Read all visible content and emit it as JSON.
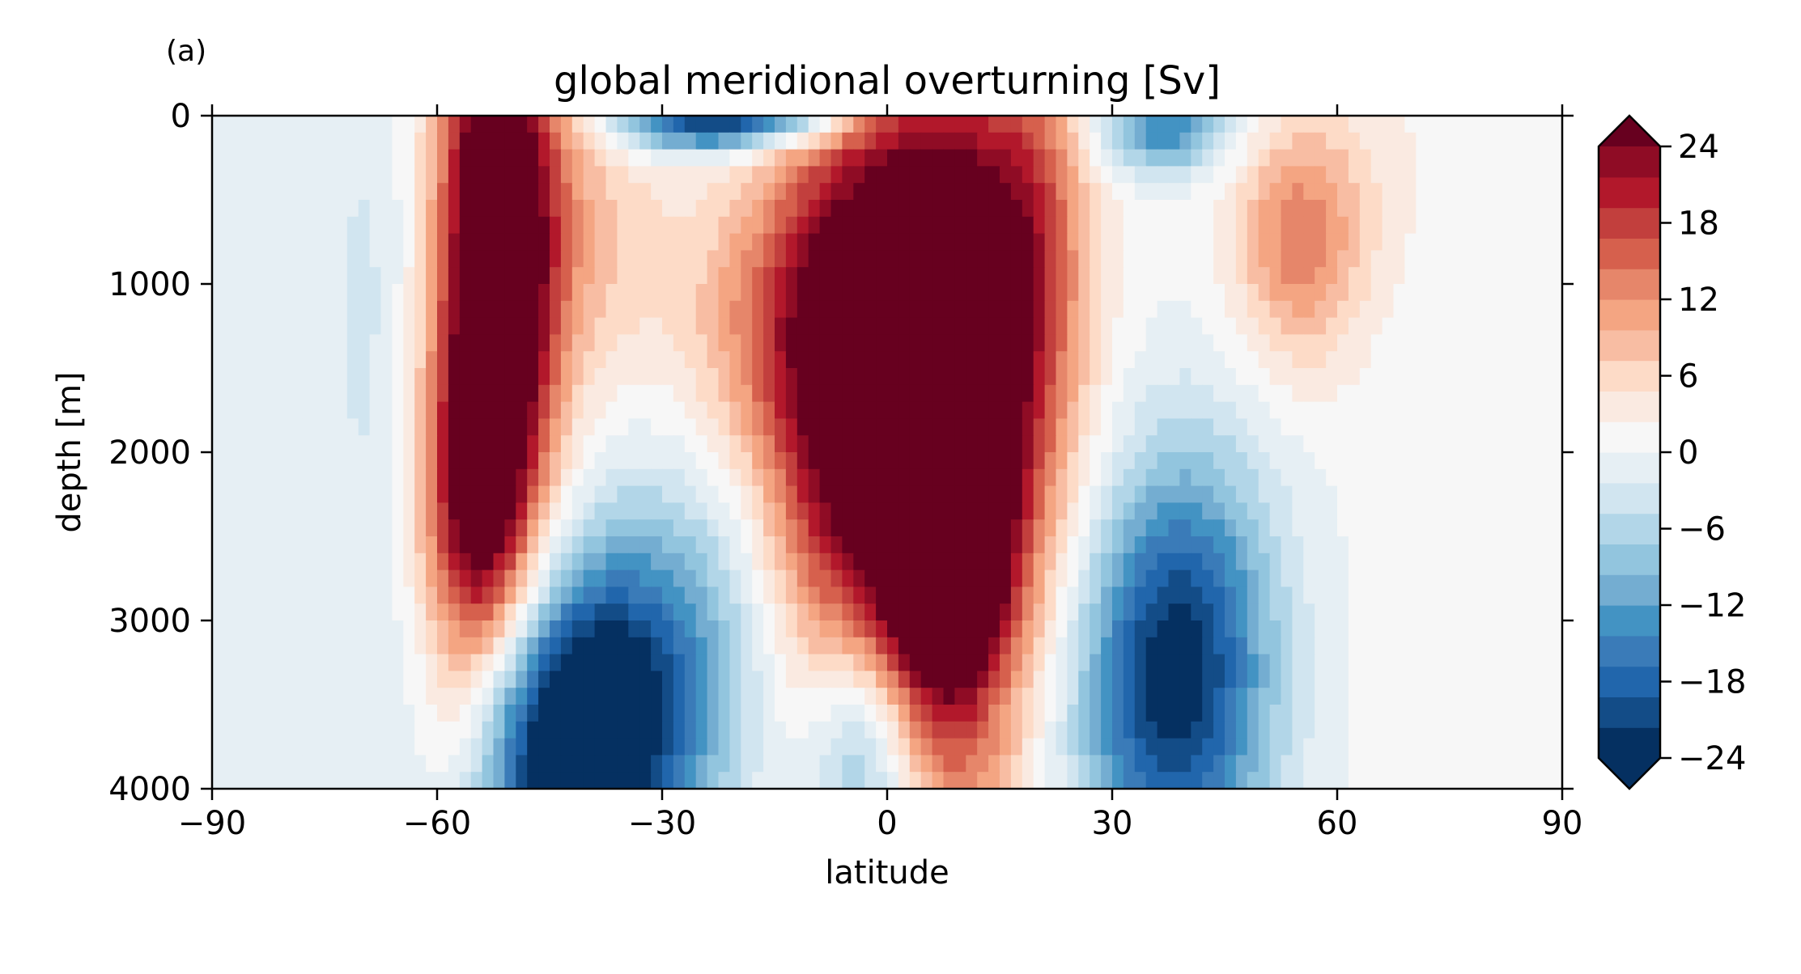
{
  "panel_label": "(a)",
  "colors": {
    "palette": [
      "#053061",
      "#134c87",
      "#2166ac",
      "#3a7bb8",
      "#4393c3",
      "#74add1",
      "#92c5de",
      "#b2d6e8",
      "#d1e5f0",
      "#e6eff4",
      "#f7f7f7",
      "#faeae1",
      "#fddbc7",
      "#f8bda3",
      "#f4a582",
      "#e6866a",
      "#d6604d",
      "#c23f3d",
      "#b2182b",
      "#8f0c25",
      "#67001f"
    ],
    "axis": "#000000",
    "background": "#ffffff"
  },
  "chart_data": {
    "type": "heatmap",
    "title": "global meridional overturning [Sv]",
    "xlabel": "latitude",
    "ylabel": "depth [m]",
    "xlim": [
      -90,
      90
    ],
    "ylim": [
      4000,
      0
    ],
    "y_inverted": true,
    "xticks": [
      -90,
      -60,
      -30,
      0,
      30,
      60,
      90
    ],
    "xtick_labels": [
      "−90",
      "−60",
      "−30",
      "0",
      "30",
      "60",
      "90"
    ],
    "yticks": [
      0,
      1000,
      2000,
      3000,
      4000
    ],
    "ytick_labels": [
      "0",
      "1000",
      "2000",
      "3000",
      "4000"
    ],
    "colorbar": {
      "min": -24,
      "max": 24,
      "extend": "both",
      "ticks": [
        -24,
        -18,
        -12,
        -6,
        0,
        6,
        12,
        18,
        24
      ],
      "tick_labels": [
        "−24",
        "−18",
        "−12",
        "−6",
        "0",
        "6",
        "12",
        "18",
        "24"
      ],
      "levels": [
        -24,
        -21.6,
        -19.2,
        -16.8,
        -14.4,
        -12,
        -9.6,
        -7.2,
        -4.8,
        -2.4,
        0,
        2.4,
        4.8,
        7.2,
        9.6,
        12,
        14.4,
        16.8,
        19.2,
        21.6,
        24
      ]
    },
    "features": [
      {
        "x": -52,
        "y": 900,
        "sx": 5.5,
        "sy": 1500,
        "v": 36
      },
      {
        "x": -56,
        "y": 2400,
        "sx": 4.5,
        "sy": 700,
        "v": 14
      },
      {
        "x": -40,
        "y": 700,
        "sx": 8,
        "sy": 700,
        "v": 7
      },
      {
        "x": -42,
        "y": 3750,
        "sx": 10,
        "sy": 650,
        "v": -30
      },
      {
        "x": -30,
        "y": 3100,
        "sx": 10,
        "sy": 700,
        "v": -10
      },
      {
        "x": -25,
        "y": 30,
        "sx": 8,
        "sy": 130,
        "v": -22
      },
      {
        "x": -12,
        "y": 40,
        "sx": 6,
        "sy": 90,
        "v": -12
      },
      {
        "x": 7,
        "y": 1500,
        "sx": 10,
        "sy": 1200,
        "v": 42
      },
      {
        "x": 8,
        "y": 2800,
        "sx": 6,
        "sy": 650,
        "v": 22
      },
      {
        "x": -8,
        "y": 1600,
        "sx": 7,
        "sy": 1200,
        "v": 16
      },
      {
        "x": -18,
        "y": 1200,
        "sx": 8,
        "sy": 600,
        "v": 8
      },
      {
        "x": 20,
        "y": 500,
        "sx": 5,
        "sy": 800,
        "v": 8
      },
      {
        "x": -3,
        "y": 3750,
        "sx": 5,
        "sy": 500,
        "v": -12
      },
      {
        "x": 38,
        "y": 3500,
        "sx": 9,
        "sy": 800,
        "v": -20
      },
      {
        "x": 40,
        "y": 2700,
        "sx": 8,
        "sy": 700,
        "v": -7
      },
      {
        "x": 37,
        "y": 80,
        "sx": 6,
        "sy": 180,
        "v": -15
      },
      {
        "x": 55,
        "y": 800,
        "sx": 6,
        "sy": 500,
        "v": 12
      },
      {
        "x": 60,
        "y": 300,
        "sx": 12,
        "sy": 500,
        "v": 3
      },
      {
        "x": -69,
        "y": 1200,
        "sx": 5,
        "sy": 1400,
        "v": -3
      },
      {
        "x": -58,
        "y": 3700,
        "sx": 4,
        "sy": 400,
        "v": 4
      },
      {
        "x": 12,
        "y": 3900,
        "sx": 6,
        "sy": 200,
        "v": 4
      },
      {
        "x": 70,
        "y": 3000,
        "sx": 10,
        "sy": 1500,
        "v": 1
      }
    ]
  }
}
